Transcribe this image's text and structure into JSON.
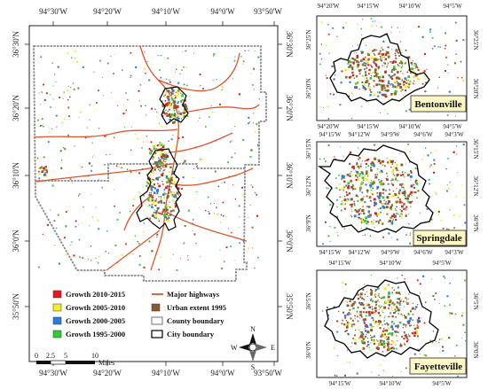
{
  "main_map": {
    "top_ticks": [
      "94°30'W",
      "94°20'W",
      "94°10'W",
      "94°0'W",
      "93°50'W"
    ],
    "bottom_ticks": [
      "94°30'W",
      "94°20'W",
      "94°10'W",
      "94°0'W",
      "93°50'W"
    ],
    "left_ticks": [
      "36°30'N",
      "36°20'N",
      "36°10'N",
      "36°0'N",
      "35°50'N"
    ],
    "right_ticks": [
      "36°30'N",
      "36°20'N",
      "36°10'N",
      "36°0'N",
      "35°50'N"
    ]
  },
  "legend": {
    "items": [
      {
        "label": "Growth 2010-2015",
        "color": "#e8171b",
        "kind": "box"
      },
      {
        "label": "Major highways",
        "color": "#e0542b",
        "kind": "line"
      },
      {
        "label": "Growth 2005-2010",
        "color": "#f6ec2a",
        "kind": "box"
      },
      {
        "label": "Urban extent 1995",
        "color": "#8b5a2b",
        "kind": "box"
      },
      {
        "label": "Growth 2000-2005",
        "color": "#2a7de1",
        "kind": "box"
      },
      {
        "label": "County boundary",
        "color": "#888888",
        "kind": "outline"
      },
      {
        "label": "Growth 1995-2000",
        "color": "#33cc33",
        "kind": "box"
      },
      {
        "label": "City boundary",
        "color": "#000000",
        "kind": "outline"
      }
    ]
  },
  "scale_bar": {
    "ticks": [
      "0",
      "2.5",
      "5",
      "10"
    ],
    "unit": "Miles"
  },
  "north_arrow": {
    "n": "N",
    "s": "S",
    "e": "E",
    "w": "W"
  },
  "insets": [
    {
      "name": "Bentonville",
      "top_ticks": [
        "94°20'W",
        "94°15'W",
        "94°10'W",
        "94°5'W"
      ],
      "bottom_ticks": [
        "94°20'W",
        "94°15'W",
        "94°10'W",
        "94°5'W"
      ],
      "left_ticks": [
        "36°25'N",
        "36°20'N"
      ],
      "right_ticks": [
        "36°25'N",
        "36°20'N"
      ]
    },
    {
      "name": "Springdale",
      "top_ticks": [
        "94°15'W",
        "94°12'W",
        "94°9'W",
        "94°6'W",
        "94°3'W"
      ],
      "bottom_ticks": [
        "94°15'W",
        "94°12'W",
        "94°9'W",
        "94°6'W",
        "94°3'W"
      ],
      "left_ticks": [
        "36°15'N",
        "36°12'N",
        "36°9'N"
      ],
      "right_ticks": [
        "36°15'N",
        "36°12'N",
        "36°9'N"
      ]
    },
    {
      "name": "Fayetteville",
      "top_ticks": [
        "94°15'W",
        "94°10'W",
        "94°5'W"
      ],
      "bottom_ticks": [
        "94°15'W",
        "94°10'W",
        "94°5'W"
      ],
      "left_ticks": [
        "36°5'N",
        "36°0'N"
      ],
      "right_ticks": [
        "36°5'N",
        "36°0'N"
      ]
    }
  ]
}
